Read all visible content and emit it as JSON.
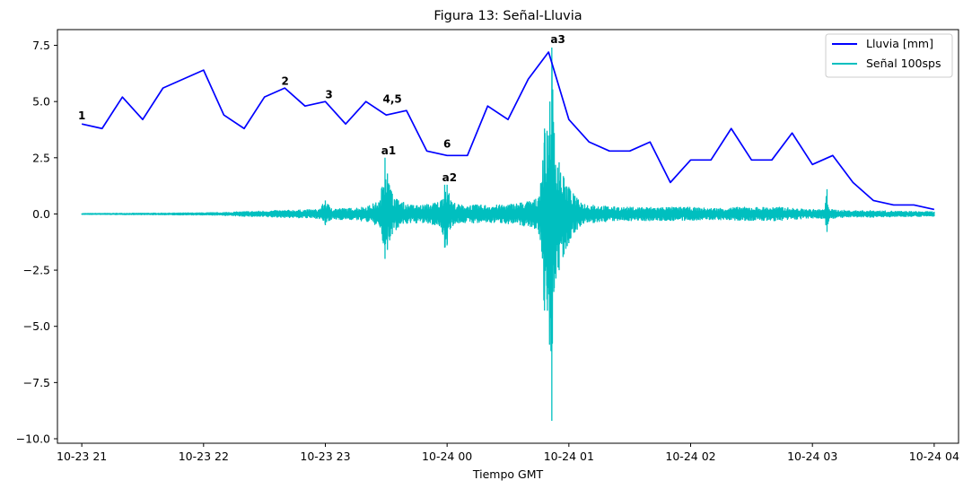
{
  "chart_data": {
    "type": "line",
    "title": "Figura 13: Señal-Lluvia",
    "xlabel": "Tiempo GMT",
    "ylabel": "",
    "x_range_hours": [
      20.8,
      28.2
    ],
    "ylim": [
      -10.2,
      8.2
    ],
    "x_ticks": [
      {
        "h": 21,
        "label": "10-23 21"
      },
      {
        "h": 22,
        "label": "10-23 22"
      },
      {
        "h": 23,
        "label": "10-23 23"
      },
      {
        "h": 24,
        "label": "10-24 00"
      },
      {
        "h": 25,
        "label": "10-24 01"
      },
      {
        "h": 26,
        "label": "10-24 02"
      },
      {
        "h": 27,
        "label": "10-24 03"
      },
      {
        "h": 28,
        "label": "10-24 04"
      }
    ],
    "y_ticks": [
      {
        "v": 7.5,
        "label": "7.5"
      },
      {
        "v": 5.0,
        "label": "5.0"
      },
      {
        "v": 2.5,
        "label": "2.5"
      },
      {
        "v": 0.0,
        "label": "0.0"
      },
      {
        "v": -2.5,
        "label": "−2.5"
      },
      {
        "v": -5.0,
        "label": "−5.0"
      },
      {
        "v": -7.5,
        "label": "−7.5"
      },
      {
        "v": -10.0,
        "label": "−10.0"
      }
    ],
    "legend_position": "top-right",
    "series": [
      {
        "name": "Lluvia [mm]",
        "color": "#0000ff",
        "x_hours": [
          21.0,
          21.1667,
          21.3333,
          21.5,
          21.6667,
          21.8333,
          22.0,
          22.1667,
          22.3333,
          22.5,
          22.6667,
          22.8333,
          23.0,
          23.1667,
          23.3333,
          23.5,
          23.6667,
          23.8333,
          24.0,
          24.1667,
          24.3333,
          24.5,
          24.6667,
          24.8333,
          25.0,
          25.1667,
          25.3333,
          25.5,
          25.6667,
          25.8333,
          26.0,
          26.1667,
          26.3333,
          26.5,
          26.6667,
          26.8333,
          27.0,
          27.1667,
          27.3333,
          27.5,
          27.6667,
          27.8333,
          28.0
        ],
        "values": [
          4.0,
          3.8,
          5.2,
          4.2,
          5.6,
          6.0,
          6.4,
          4.4,
          3.8,
          5.2,
          5.6,
          4.8,
          5.0,
          4.0,
          5.0,
          4.4,
          4.6,
          2.8,
          2.6,
          2.6,
          4.8,
          4.2,
          6.0,
          7.2,
          4.2,
          3.2,
          2.8,
          2.8,
          3.2,
          1.4,
          2.4,
          2.4,
          3.8,
          2.4,
          2.4,
          3.6,
          2.2,
          2.6,
          1.4,
          0.6,
          0.4,
          0.4,
          0.2
        ]
      },
      {
        "name": "Señal 100sps",
        "color": "#00bfbf",
        "envelope_hours": [
          21.0,
          21.5,
          22.0,
          22.15,
          22.3,
          22.6,
          22.95,
          23.0,
          23.05,
          23.2,
          23.35,
          23.45,
          23.49,
          23.51,
          23.55,
          23.6,
          23.7,
          23.8,
          23.9,
          23.95,
          23.98,
          24.0,
          24.03,
          24.1,
          24.25,
          24.45,
          24.6,
          24.75,
          24.8,
          24.82,
          24.86,
          24.88,
          24.92,
          24.96,
          25.0,
          25.05,
          25.1,
          25.2,
          25.4,
          25.6,
          25.8,
          25.95,
          26.2,
          26.4,
          26.6,
          26.75,
          26.95,
          27.1,
          27.12,
          27.14,
          27.3,
          27.5,
          27.7,
          28.0
        ],
        "envelope_max": [
          0.02,
          0.03,
          0.05,
          0.06,
          0.1,
          0.15,
          0.2,
          0.6,
          0.25,
          0.25,
          0.35,
          0.6,
          2.5,
          1.8,
          0.9,
          0.6,
          0.4,
          0.4,
          0.5,
          0.6,
          1.3,
          1.3,
          0.6,
          0.4,
          0.4,
          0.4,
          0.5,
          0.7,
          3.8,
          3.6,
          7.4,
          3.6,
          2.3,
          1.6,
          1.2,
          0.8,
          0.5,
          0.4,
          0.3,
          0.3,
          0.3,
          0.3,
          0.25,
          0.3,
          0.3,
          0.3,
          0.2,
          0.2,
          1.1,
          0.2,
          0.15,
          0.15,
          0.12,
          0.1
        ],
        "envelope_min": [
          -0.02,
          -0.03,
          -0.05,
          -0.06,
          -0.1,
          -0.15,
          -0.2,
          -0.5,
          -0.25,
          -0.25,
          -0.35,
          -0.6,
          -2.0,
          -1.6,
          -0.9,
          -0.6,
          -0.4,
          -0.4,
          -0.5,
          -0.6,
          -1.5,
          -1.4,
          -0.6,
          -0.4,
          -0.4,
          -0.4,
          -0.5,
          -0.7,
          -4.3,
          -3.8,
          -9.2,
          -3.3,
          -2.5,
          -1.8,
          -1.3,
          -0.8,
          -0.5,
          -0.4,
          -0.3,
          -0.3,
          -0.3,
          -0.3,
          -0.25,
          -0.3,
          -0.3,
          -0.3,
          -0.2,
          -0.2,
          -0.8,
          -0.2,
          -0.15,
          -0.15,
          -0.12,
          -0.1
        ]
      }
    ],
    "annotations": [
      {
        "text": "1",
        "x_hours": 21.0,
        "y": 4.2
      },
      {
        "text": "2",
        "x_hours": 22.67,
        "y": 5.75
      },
      {
        "text": "3",
        "x_hours": 23.03,
        "y": 5.15
      },
      {
        "text": "4,5",
        "x_hours": 23.55,
        "y": 4.95
      },
      {
        "text": "6",
        "x_hours": 24.0,
        "y": 2.95
      },
      {
        "text": "a1",
        "x_hours": 23.52,
        "y": 2.65
      },
      {
        "text": "a2",
        "x_hours": 24.02,
        "y": 1.45
      },
      {
        "text": "a3",
        "x_hours": 24.91,
        "y": 7.6
      }
    ]
  }
}
